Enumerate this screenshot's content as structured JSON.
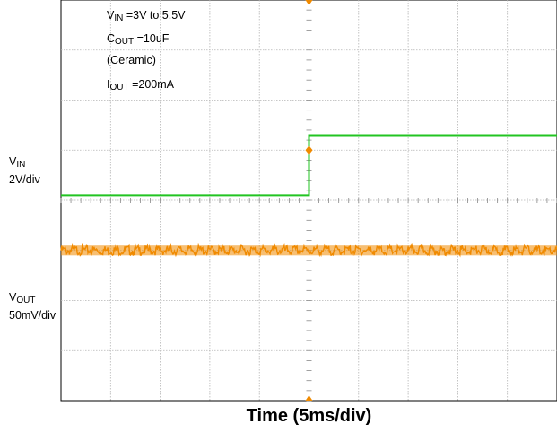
{
  "conditions": {
    "vin": {
      "sym": "V",
      "sub": "IN",
      "text": " =3V to 5.5V"
    },
    "cout": {
      "sym": "C",
      "sub": "OUT",
      "text": " =10uF"
    },
    "cout_note": "(Ceramic)",
    "iout": {
      "sym": "I",
      "sub": "OUT",
      "text": " =200mA"
    }
  },
  "channels": {
    "vin": {
      "sym": "V",
      "sub": "IN",
      "scale": "2V/div",
      "color": "#22c422"
    },
    "vout": {
      "sym": "V",
      "sub": "OUT",
      "scale": "50mV/div",
      "color": "#f08a00"
    }
  },
  "chart_data": {
    "type": "line",
    "xlabel": "Time (5ms/div)",
    "x_divisions": 10,
    "y_divisions": 8,
    "grid": true,
    "trigger_marker": "center",
    "series": [
      {
        "channel": "vin",
        "x_div": [
          0,
          5,
          5,
          10
        ],
        "y_div": [
          4.1,
          4.1,
          5.3,
          5.3
        ]
      },
      {
        "channel": "vout",
        "x_div": [
          0,
          10
        ],
        "y_div": [
          3.0,
          3.0
        ],
        "noise_band_div": 0.2
      }
    ]
  }
}
